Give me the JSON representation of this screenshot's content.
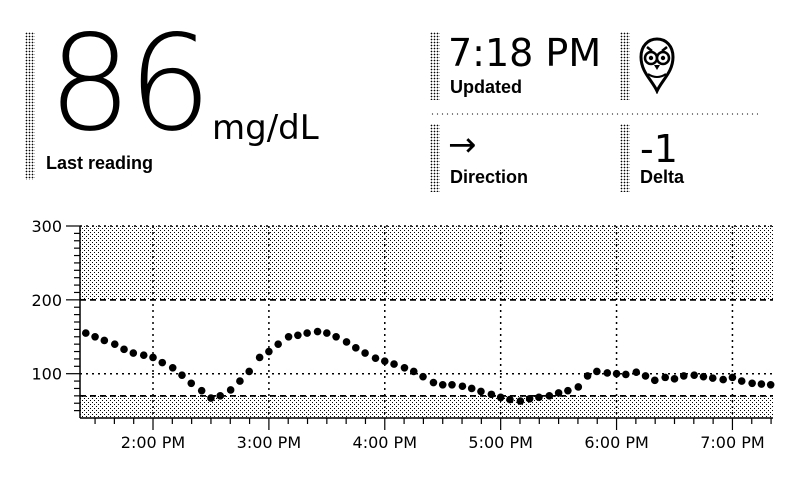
{
  "reading": {
    "value": "86",
    "unit": "mg/dL",
    "label": "Last reading"
  },
  "updated": {
    "time": "7:18 PM",
    "label": "Updated"
  },
  "logo": {
    "icon": "owl-pin-icon"
  },
  "direction": {
    "arrow": "→",
    "label": "Direction"
  },
  "delta": {
    "value": "-1",
    "label": "Delta"
  },
  "chart_data": {
    "type": "scatter",
    "y_ticks": [
      "300",
      "200",
      "100"
    ],
    "x_ticks": [
      "2:00 PM",
      "3:00 PM",
      "4:00 PM",
      "5:00 PM",
      "6:00 PM",
      "7:00 PM"
    ],
    "x_tick_values": [
      14,
      15,
      16,
      17,
      18,
      19
    ],
    "ylim": [
      40,
      300
    ],
    "xlim": [
      13.37,
      19.35
    ],
    "target_range": [
      70,
      200
    ],
    "grid": true,
    "x": [
      13.42,
      13.5,
      13.58,
      13.67,
      13.75,
      13.83,
      13.92,
      14.0,
      14.08,
      14.17,
      14.25,
      14.33,
      14.42,
      14.5,
      14.58,
      14.67,
      14.75,
      14.83,
      14.92,
      15.0,
      15.08,
      15.17,
      15.25,
      15.33,
      15.42,
      15.5,
      15.58,
      15.67,
      15.75,
      15.83,
      15.92,
      16.0,
      16.08,
      16.17,
      16.25,
      16.33,
      16.42,
      16.5,
      16.58,
      16.67,
      16.75,
      16.83,
      16.92,
      17.0,
      17.08,
      17.17,
      17.25,
      17.33,
      17.42,
      17.5,
      17.58,
      17.67,
      17.75,
      17.83,
      17.92,
      18.0,
      18.08,
      18.17,
      18.25,
      18.33,
      18.42,
      18.5,
      18.58,
      18.67,
      18.75,
      18.83,
      18.92,
      19.0,
      19.08,
      19.17,
      19.25,
      19.33
    ],
    "y": [
      155,
      150,
      145,
      140,
      133,
      128,
      125,
      122,
      115,
      108,
      98,
      87,
      77,
      67,
      70,
      78,
      90,
      103,
      122,
      130,
      140,
      150,
      152,
      155,
      157,
      155,
      150,
      143,
      135,
      128,
      121,
      117,
      113,
      108,
      103,
      96,
      88,
      85,
      85,
      83,
      80,
      76,
      72,
      68,
      65,
      63,
      66,
      68,
      70,
      74,
      77,
      82,
      97,
      103,
      101,
      100,
      99,
      102,
      97,
      91,
      95,
      93,
      97,
      98,
      96,
      94,
      92,
      95,
      90,
      87,
      86,
      85
    ]
  }
}
